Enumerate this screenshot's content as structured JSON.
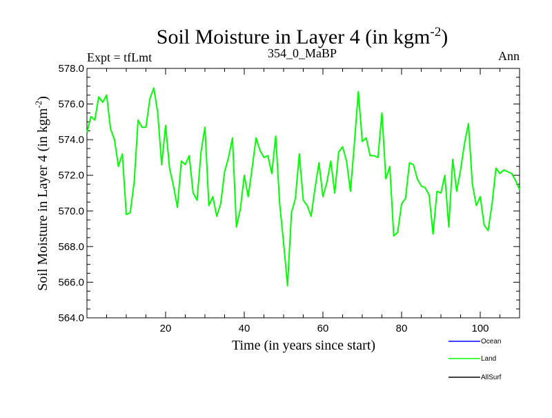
{
  "chart_data": {
    "type": "line",
    "title": "Soil Moisture in Layer 4 (in kgm",
    "title_superscript": "-2",
    "title_close": ")",
    "subtitle_left": "Expt = tfLmt",
    "subtitle_center": "354_0_MaBP",
    "subtitle_right": "Ann",
    "xlabel": "Time (in years since start)",
    "ylabel": "Soil Moisture in Layer 4 (in kgm",
    "ylabel_superscript": "-2",
    "ylabel_close": ")",
    "xlim": [
      0,
      110
    ],
    "ylim": [
      564,
      578
    ],
    "xticks": [
      20,
      40,
      60,
      80,
      100
    ],
    "yticks": [
      564.0,
      566.0,
      568.0,
      570.0,
      572.0,
      574.0,
      576.0,
      578.0
    ],
    "ytick_labels": [
      "564.0",
      "566.0",
      "568.0",
      "570.0",
      "572.0",
      "574.0",
      "576.0",
      "578.0"
    ],
    "grid": false,
    "legend_position": "bottom-right, below plot",
    "legend": [
      {
        "name": "Ocean",
        "color": "#0000ff"
      },
      {
        "name": "Land",
        "color": "#00ff00"
      },
      {
        "name": "AllSurf",
        "color": "#000000"
      }
    ],
    "series": [
      {
        "name": "Land",
        "color": "#00ff00",
        "x": [
          0,
          1,
          2,
          3,
          4,
          5,
          6,
          7,
          8,
          9,
          10,
          11,
          12,
          13,
          14,
          15,
          16,
          17,
          18,
          19,
          20,
          21,
          22,
          23,
          24,
          25,
          26,
          27,
          28,
          29,
          30,
          31,
          32,
          33,
          34,
          35,
          36,
          37,
          38,
          39,
          40,
          41,
          42,
          43,
          44,
          45,
          46,
          47,
          48,
          49,
          50,
          51,
          52,
          53,
          54,
          55,
          56,
          57,
          58,
          59,
          60,
          61,
          62,
          63,
          64,
          65,
          66,
          67,
          68,
          69,
          70,
          71,
          72,
          73,
          74,
          75,
          76,
          77,
          78,
          79,
          80,
          81,
          82,
          83,
          84,
          85,
          86,
          87,
          88,
          89,
          90,
          91,
          92,
          93,
          94,
          95,
          96,
          97,
          98,
          99,
          100,
          101,
          102,
          103,
          104,
          105,
          106,
          107,
          108,
          109,
          110
        ],
        "values": [
          574.4,
          575.3,
          575.1,
          576.4,
          576.1,
          576.5,
          574.6,
          574.0,
          572.5,
          573.2,
          569.8,
          569.9,
          571.6,
          575.1,
          574.7,
          574.7,
          576.3,
          576.9,
          575.5,
          572.6,
          574.8,
          572.4,
          571.4,
          570.2,
          572.8,
          572.6,
          573.1,
          571.0,
          570.6,
          573.3,
          574.7,
          570.3,
          570.8,
          569.7,
          570.4,
          572.2,
          573.0,
          574.1,
          569.1,
          570.1,
          572.0,
          570.8,
          572.4,
          574.1,
          573.4,
          573.0,
          573.1,
          572.1,
          574.2,
          570.4,
          568.2,
          565.8,
          569.9,
          570.7,
          573.2,
          570.6,
          570.3,
          569.7,
          571.3,
          572.7,
          570.8,
          571.6,
          572.8,
          571.0,
          573.3,
          573.6,
          572.8,
          571.1,
          573.8,
          576.7,
          573.9,
          574.1,
          573.1,
          573.1,
          573.0,
          575.5,
          571.8,
          572.5,
          568.6,
          568.8,
          570.4,
          570.7,
          572.7,
          572.6,
          571.8,
          571.4,
          571.3,
          570.9,
          568.7,
          571.1,
          571.0,
          572.0,
          569.1,
          572.9,
          571.1,
          572.3,
          573.8,
          574.9,
          571.5,
          570.3,
          570.8,
          569.2,
          568.9,
          570.4,
          572.4,
          572.1,
          572.3,
          572.2,
          572.1,
          571.7,
          571.2
        ]
      }
    ]
  }
}
